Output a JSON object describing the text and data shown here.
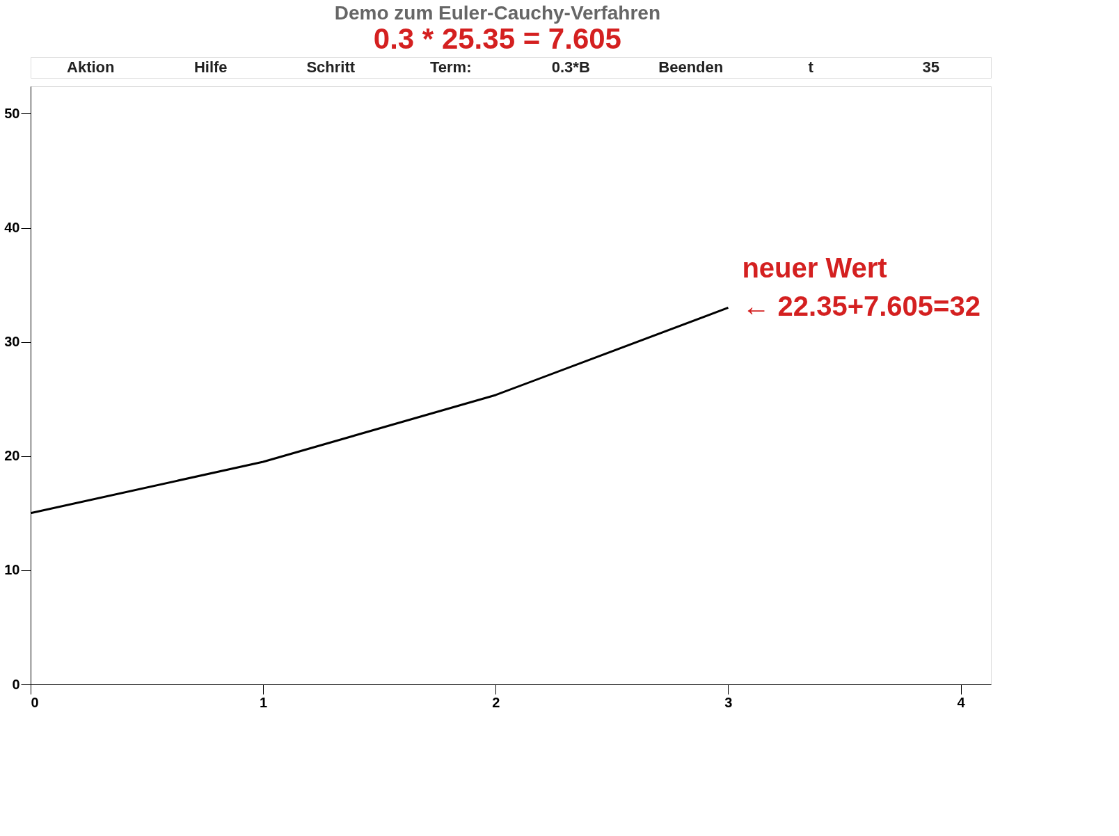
{
  "chart_data": {
    "type": "line",
    "title": "Demo zum Euler-Cauchy-Verfahren",
    "subtitle": "0.3 * 25.35 = 7.605",
    "x": [
      0,
      1,
      2,
      3
    ],
    "series": [
      {
        "color": "#000000",
        "values": [
          15,
          19.5,
          25.35,
          33
        ]
      }
    ],
    "xlim": [
      0,
      4.13
    ],
    "ylim": [
      0,
      52.4
    ],
    "xticks": [
      0,
      1,
      2,
      3,
      4
    ],
    "yticks": [
      0,
      10,
      20,
      30,
      40,
      50
    ],
    "grid": false,
    "marker": "none",
    "line_style": "solid",
    "annotations": [
      "Aktion",
      "Hilfe",
      "Schritt",
      "Term:",
      "0.3*B",
      "Beenden",
      "t",
      "35",
      {
        "text": "neuer Wert",
        "x": 3,
        "y": 33
      },
      {
        "text": "← 22.35+7.605=32",
        "x": 3,
        "y": 33
      }
    ]
  }
}
